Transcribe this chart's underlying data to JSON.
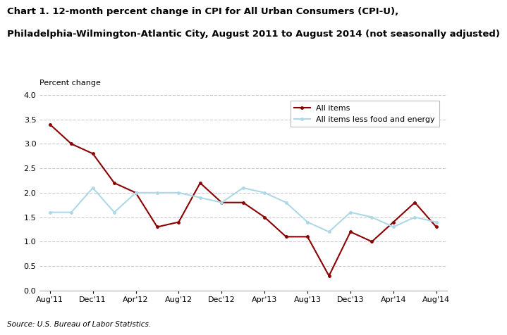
{
  "title_line1": "Chart 1. 12-month percent change in CPI for All Urban Consumers (CPI-U),",
  "title_line2": "Philadelphia-Wilmington-Atlantic City, August 2011 to August 2014 (not seasonally adjusted)",
  "ylabel": "Percent change",
  "source": "Source: U.S. Bureau of Labor Statistics.",
  "x_tick_labels": [
    "Aug'11",
    "Dec'11",
    "Apr'12",
    "Aug'12",
    "Dec'12",
    "Apr'13",
    "Aug'13",
    "Dec'13",
    "Apr'14",
    "Aug'14"
  ],
  "x_tick_positions": [
    0,
    2,
    4,
    6,
    8,
    10,
    12,
    14,
    16,
    18
  ],
  "all_items_y": [
    3.4,
    3.0,
    2.8,
    2.2,
    2.0,
    1.3,
    1.4,
    2.2,
    1.8,
    1.8,
    1.5,
    1.1,
    1.1,
    0.3,
    1.2,
    1.0,
    1.4,
    1.8,
    1.3
  ],
  "less_fe_y": [
    1.6,
    1.6,
    2.1,
    1.6,
    2.0,
    2.0,
    2.0,
    1.9,
    1.8,
    2.1,
    2.0,
    1.8,
    1.4,
    1.2,
    1.6,
    1.5,
    1.3,
    1.5,
    1.4
  ],
  "all_items_color": "#8B0000",
  "less_fe_color": "#ADD8E6",
  "ylim": [
    0.0,
    4.0
  ],
  "yticks": [
    0.0,
    0.5,
    1.0,
    1.5,
    2.0,
    2.5,
    3.0,
    3.5,
    4.0
  ],
  "grid_color": "#C8C8D8",
  "bg_color": "#FFFFFF"
}
